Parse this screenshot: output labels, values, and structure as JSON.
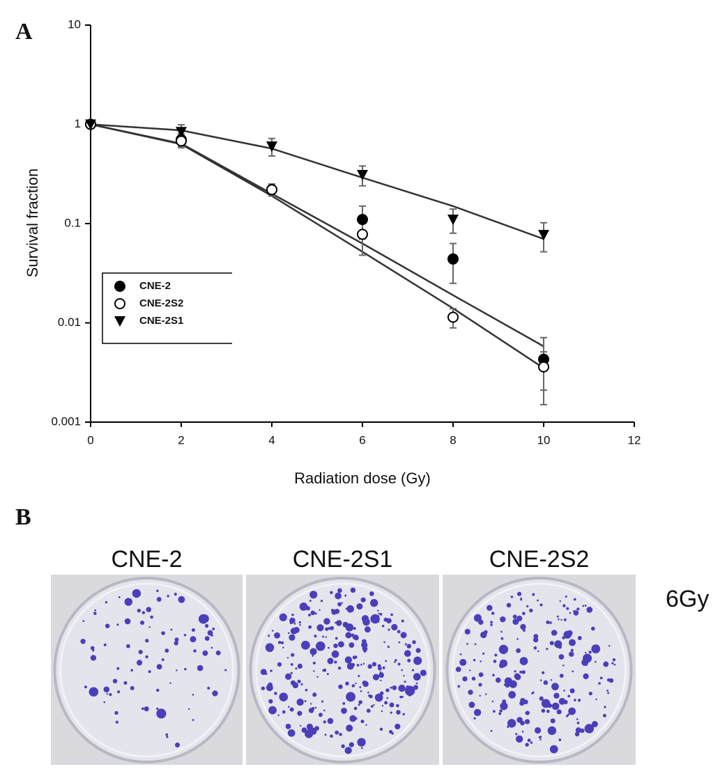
{
  "panel_a_label": "A",
  "chart_data": {
    "type": "scatter",
    "yscale": "log",
    "xlabel": "Radiation dose (Gy)",
    "ylabel": "Survival fraction",
    "xlim": [
      0,
      12
    ],
    "xticks": [
      0,
      2,
      4,
      6,
      8,
      10,
      12
    ],
    "ylim": [
      0.001,
      10
    ],
    "yticks": [
      0.001,
      0.01,
      0.1,
      1,
      10
    ],
    "legend": "lower-left",
    "x": [
      0,
      2,
      4,
      6,
      8,
      10
    ],
    "series": [
      {
        "name": "CNE-2",
        "color": "#000000",
        "marker": "filled-circle",
        "values": [
          1,
          0.7,
          0.22,
          0.11,
          0.044,
          0.0043
        ],
        "errors": [
          0.05,
          0.1,
          0.03,
          0.04,
          0.019,
          0.0028
        ],
        "fit": [
          1,
          0.64,
          0.2,
          0.063,
          0.019,
          0.0058
        ]
      },
      {
        "name": "CNE-2S2",
        "color": "#000000",
        "marker": "open-circle",
        "values": [
          1,
          0.68,
          0.22,
          0.078,
          0.0114,
          0.0036
        ],
        "errors": [
          0.05,
          0.1,
          0.03,
          0.03,
          0.0025,
          0.0015
        ],
        "fit": [
          1,
          0.63,
          0.19,
          0.052,
          0.014,
          0.0035
        ]
      },
      {
        "name": "CNE-2S1",
        "color": "#000000",
        "marker": "triangle-down",
        "values": [
          1,
          0.84,
          0.6,
          0.31,
          0.11,
          0.077
        ],
        "errors": [
          0.05,
          0.15,
          0.12,
          0.07,
          0.03,
          0.025
        ],
        "fit": [
          1,
          0.87,
          0.57,
          0.29,
          0.15,
          0.07
        ]
      }
    ]
  },
  "panel_b": {
    "label": "B",
    "plates": [
      "CNE-2",
      "CNE-2S1",
      "CNE-2S2"
    ],
    "dose": "6Gy"
  }
}
